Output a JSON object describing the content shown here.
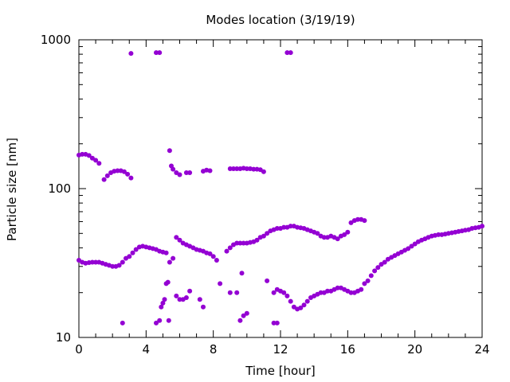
{
  "chart_data": {
    "type": "scatter",
    "title": "Modes location (3/19/19)",
    "xlabel": "Time [hour]",
    "ylabel": "Particle size [nm]",
    "xlim": [
      0,
      24
    ],
    "ylim": [
      10,
      1000
    ],
    "yscale": "log",
    "grid": false,
    "x_ticks": [
      0,
      4,
      8,
      12,
      16,
      20,
      24
    ],
    "y_ticks": [
      10,
      100,
      1000
    ],
    "marker_color": "#9400d3",
    "series": [
      {
        "points": [
          [
            0.0,
            33
          ],
          [
            0.2,
            32
          ],
          [
            0.4,
            31.5
          ],
          [
            0.6,
            31.8
          ],
          [
            0.8,
            32
          ],
          [
            1.0,
            32
          ],
          [
            1.2,
            32
          ],
          [
            1.4,
            31.5
          ],
          [
            1.6,
            31
          ],
          [
            1.8,
            30.5
          ],
          [
            2.0,
            30
          ],
          [
            2.2,
            30
          ],
          [
            2.4,
            30.5
          ],
          [
            2.6,
            32
          ],
          [
            2.8,
            34
          ],
          [
            3.0,
            35
          ],
          [
            3.2,
            37
          ],
          [
            3.4,
            39
          ],
          [
            3.6,
            40.5
          ],
          [
            3.8,
            41
          ],
          [
            4.0,
            40.5
          ],
          [
            4.2,
            40
          ],
          [
            4.4,
            39.5
          ],
          [
            4.6,
            39
          ],
          [
            4.8,
            38
          ],
          [
            5.0,
            37.5
          ],
          [
            5.2,
            37
          ],
          [
            5.4,
            32
          ],
          [
            5.6,
            34
          ],
          [
            5.8,
            47
          ],
          [
            6.0,
            45
          ],
          [
            6.2,
            43
          ],
          [
            6.4,
            42
          ],
          [
            6.6,
            41
          ],
          [
            6.8,
            40
          ],
          [
            7.0,
            39
          ],
          [
            7.2,
            38.5
          ],
          [
            7.4,
            38
          ],
          [
            7.6,
            37
          ],
          [
            7.8,
            36.5
          ],
          [
            8.0,
            35
          ],
          [
            8.2,
            33
          ],
          [
            8.8,
            38
          ],
          [
            9.0,
            40
          ],
          [
            9.2,
            42
          ],
          [
            9.4,
            43
          ],
          [
            9.6,
            43
          ],
          [
            9.8,
            43
          ],
          [
            10.0,
            43
          ],
          [
            10.2,
            43.5
          ],
          [
            10.4,
            44
          ],
          [
            10.6,
            45
          ],
          [
            10.8,
            47
          ],
          [
            11.0,
            48
          ],
          [
            11.2,
            50
          ],
          [
            11.4,
            52
          ],
          [
            11.6,
            53
          ],
          [
            11.8,
            54
          ],
          [
            12.0,
            54
          ],
          [
            12.2,
            55
          ],
          [
            12.4,
            55
          ],
          [
            12.6,
            56
          ],
          [
            12.8,
            56
          ],
          [
            13.0,
            55
          ],
          [
            13.2,
            54.5
          ],
          [
            13.4,
            54
          ],
          [
            13.6,
            53
          ],
          [
            13.8,
            52
          ],
          [
            14.0,
            51
          ],
          [
            14.2,
            50
          ],
          [
            14.4,
            48
          ],
          [
            14.6,
            47
          ],
          [
            14.8,
            47
          ],
          [
            15.0,
            48
          ],
          [
            15.2,
            47
          ],
          [
            15.4,
            46
          ],
          [
            15.6,
            48
          ],
          [
            15.8,
            49
          ],
          [
            16.0,
            51
          ],
          [
            16.2,
            59
          ],
          [
            16.4,
            61
          ],
          [
            16.6,
            62
          ],
          [
            16.8,
            62
          ],
          [
            17.0,
            61
          ]
        ]
      },
      {
        "points": [
          [
            11.6,
            20
          ],
          [
            11.8,
            21
          ],
          [
            12.0,
            20.5
          ],
          [
            12.2,
            20
          ],
          [
            12.4,
            19
          ],
          [
            12.6,
            17.5
          ],
          [
            12.8,
            16
          ],
          [
            13.0,
            15.5
          ],
          [
            13.2,
            15.8
          ],
          [
            13.4,
            16.5
          ],
          [
            13.6,
            17.5
          ],
          [
            13.8,
            18.5
          ],
          [
            14.0,
            19
          ],
          [
            14.2,
            19.5
          ],
          [
            14.4,
            20
          ],
          [
            14.6,
            20
          ],
          [
            14.8,
            20.5
          ],
          [
            15.0,
            20.5
          ],
          [
            15.2,
            21
          ],
          [
            15.4,
            21.5
          ],
          [
            15.6,
            21.5
          ],
          [
            15.8,
            21
          ],
          [
            16.0,
            20.5
          ],
          [
            16.2,
            20
          ],
          [
            16.4,
            20
          ],
          [
            16.6,
            20.5
          ],
          [
            16.8,
            21
          ],
          [
            17.0,
            23
          ],
          [
            17.2,
            24
          ],
          [
            17.4,
            26
          ],
          [
            17.6,
            28
          ],
          [
            17.8,
            29.5
          ],
          [
            18.0,
            31
          ],
          [
            18.2,
            32
          ],
          [
            18.4,
            33.5
          ],
          [
            18.6,
            34.5
          ],
          [
            18.8,
            35.5
          ],
          [
            19.0,
            36.5
          ],
          [
            19.2,
            37.5
          ],
          [
            19.4,
            38.5
          ],
          [
            19.6,
            39.5
          ],
          [
            19.8,
            41
          ],
          [
            20.0,
            42.5
          ],
          [
            20.2,
            44
          ],
          [
            20.4,
            45
          ],
          [
            20.6,
            46
          ],
          [
            20.8,
            47
          ],
          [
            21.0,
            48
          ],
          [
            21.2,
            48.5
          ],
          [
            21.4,
            49
          ],
          [
            21.6,
            49
          ],
          [
            21.8,
            49.5
          ],
          [
            22.0,
            50
          ],
          [
            22.2,
            50.5
          ],
          [
            22.4,
            51
          ],
          [
            22.6,
            51.5
          ],
          [
            22.8,
            52
          ],
          [
            23.0,
            52.5
          ],
          [
            23.2,
            53
          ],
          [
            23.4,
            54
          ],
          [
            23.6,
            54.5
          ],
          [
            23.8,
            55
          ],
          [
            24.0,
            56
          ]
        ]
      },
      {
        "points": [
          [
            0.0,
            168
          ],
          [
            0.2,
            170
          ],
          [
            0.4,
            170
          ],
          [
            0.6,
            167
          ],
          [
            0.8,
            160
          ],
          [
            1.0,
            155
          ],
          [
            1.2,
            148
          ],
          [
            1.5,
            115
          ],
          [
            1.7,
            122
          ],
          [
            1.9,
            128
          ],
          [
            2.1,
            131
          ],
          [
            2.3,
            132
          ],
          [
            2.5,
            132
          ],
          [
            2.7,
            130
          ],
          [
            2.9,
            125
          ],
          [
            3.1,
            118
          ],
          [
            5.4,
            180
          ],
          [
            5.5,
            142
          ],
          [
            5.6,
            135
          ],
          [
            5.8,
            128
          ],
          [
            6.0,
            124
          ],
          [
            6.4,
            128
          ],
          [
            6.6,
            128
          ],
          [
            7.4,
            131
          ],
          [
            7.6,
            133
          ],
          [
            7.8,
            132
          ],
          [
            9.0,
            136
          ],
          [
            9.2,
            136
          ],
          [
            9.4,
            136
          ],
          [
            9.6,
            136
          ],
          [
            9.8,
            137
          ],
          [
            10.0,
            136
          ],
          [
            10.2,
            136
          ],
          [
            10.4,
            135
          ],
          [
            10.6,
            135
          ],
          [
            10.8,
            134
          ],
          [
            11.0,
            130
          ]
        ]
      },
      {
        "points": [
          [
            3.1,
            810
          ],
          [
            4.6,
            820
          ],
          [
            4.8,
            820
          ],
          [
            12.4,
            820
          ],
          [
            12.6,
            820
          ]
        ]
      },
      {
        "points": [
          [
            2.6,
            12.5
          ],
          [
            4.6,
            12.5
          ],
          [
            4.8,
            13
          ],
          [
            4.9,
            16
          ],
          [
            5.0,
            17
          ],
          [
            5.1,
            18
          ],
          [
            5.2,
            23
          ],
          [
            5.3,
            23.5
          ],
          [
            5.35,
            13
          ],
          [
            5.8,
            19
          ],
          [
            6.0,
            18
          ],
          [
            6.2,
            18
          ],
          [
            6.4,
            18.5
          ],
          [
            6.6,
            20.5
          ],
          [
            7.2,
            18
          ],
          [
            7.4,
            16
          ],
          [
            8.4,
            23
          ],
          [
            9.0,
            20
          ],
          [
            9.4,
            20
          ],
          [
            9.6,
            13
          ],
          [
            9.8,
            14
          ],
          [
            10.0,
            14.5
          ],
          [
            9.7,
            27
          ],
          [
            11.2,
            24
          ],
          [
            11.6,
            12.5
          ],
          [
            11.8,
            12.5
          ]
        ]
      }
    ]
  }
}
